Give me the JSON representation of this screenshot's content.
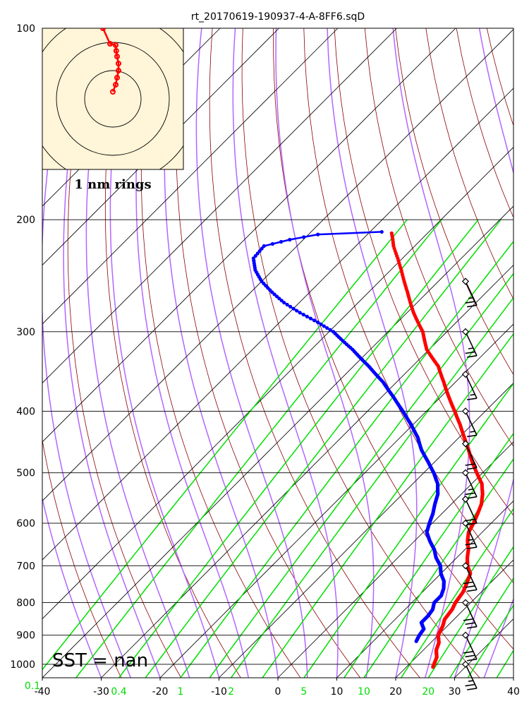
{
  "chart_data": {
    "type": "line",
    "subtype": "skew-t log-p sounding",
    "title": "rt_20170619-190937-4-A-8FF6.sqD",
    "x_ticks": [
      -40,
      -30,
      -20,
      -10,
      0,
      10,
      20,
      30,
      40
    ],
    "xlim": [
      -40,
      40
    ],
    "y_ticks": [
      100,
      200,
      300,
      400,
      500,
      600,
      700,
      800,
      900,
      1000
    ],
    "ylim": [
      1050,
      100
    ],
    "y_scale": "log",
    "mixing_ratio_labels": [
      {
        "label": "0.1",
        "value": 0.1
      },
      {
        "label": "0.4",
        "value": 0.4
      },
      {
        "label": "1",
        "value": 1
      },
      {
        "label": "2",
        "value": 2
      },
      {
        "label": "5",
        "value": 5
      },
      {
        "label": "10",
        "value": 10
      },
      {
        "label": "20",
        "value": 20
      }
    ],
    "annotation": "SST =  nan",
    "colors": {
      "temperature": "#ff0000",
      "dewpoint": "#0000ff",
      "dry_adiabat": "#8b0000",
      "moist_adiabat": "#b266ff",
      "mixing_ratio": "#00e000",
      "isotherm": "#000000",
      "isobar": "#000000",
      "inset_bg": "#fff5d8",
      "mixing_label": "#00dd00"
    },
    "series": [
      {
        "name": "Temperature",
        "points": [
          [
            1010,
            24.5
          ],
          [
            975,
            23.5
          ],
          [
            950,
            22.2
          ],
          [
            925,
            21.4
          ],
          [
            900,
            20.0
          ],
          [
            870,
            19.2
          ],
          [
            850,
            18.4
          ],
          [
            820,
            18.0
          ],
          [
            800,
            17.4
          ],
          [
            770,
            16.9
          ],
          [
            750,
            16.2
          ],
          [
            720,
            15.0
          ],
          [
            700,
            13.2
          ],
          [
            680,
            11.8
          ],
          [
            660,
            10.6
          ],
          [
            640,
            9.0
          ],
          [
            620,
            7.7
          ],
          [
            600,
            7.0
          ],
          [
            580,
            6.1
          ],
          [
            560,
            5.1
          ],
          [
            540,
            3.6
          ],
          [
            520,
            1.7
          ],
          [
            500,
            -1.0
          ],
          [
            480,
            -3.7
          ],
          [
            460,
            -6.3
          ],
          [
            440,
            -9.1
          ],
          [
            420,
            -12.0
          ],
          [
            400,
            -15.2
          ],
          [
            380,
            -18.6
          ],
          [
            360,
            -22.0
          ],
          [
            340,
            -25.6
          ],
          [
            320,
            -30.4
          ],
          [
            300,
            -34.1
          ],
          [
            280,
            -38.9
          ],
          [
            260,
            -43.4
          ],
          [
            240,
            -48.2
          ],
          [
            230,
            -50.8
          ],
          [
            220,
            -53.6
          ],
          [
            215,
            -54.8
          ],
          [
            210,
            -56.1
          ]
        ]
      },
      {
        "name": "Dewpoint",
        "points": [
          [
            920,
            17.3
          ],
          [
            900,
            16.8
          ],
          [
            880,
            16.5
          ],
          [
            860,
            15.0
          ],
          [
            840,
            15.0
          ],
          [
            820,
            14.7
          ],
          [
            800,
            13.8
          ],
          [
            780,
            13.8
          ],
          [
            760,
            13.0
          ],
          [
            740,
            11.8
          ],
          [
            720,
            10.0
          ],
          [
            700,
            8.6
          ],
          [
            680,
            6.5
          ],
          [
            660,
            4.8
          ],
          [
            640,
            2.6
          ],
          [
            620,
            0.6
          ],
          [
            600,
            -0.5
          ],
          [
            580,
            -1.5
          ],
          [
            560,
            -2.8
          ],
          [
            540,
            -4.0
          ],
          [
            520,
            -5.8
          ],
          [
            500,
            -8.3
          ],
          [
            480,
            -11.2
          ],
          [
            460,
            -14.3
          ],
          [
            440,
            -17.0
          ],
          [
            420,
            -20.3
          ],
          [
            400,
            -24.0
          ],
          [
            380,
            -28.0
          ],
          [
            360,
            -32.3
          ],
          [
            340,
            -37.4
          ],
          [
            320,
            -43.0
          ],
          [
            300,
            -49.3
          ],
          [
            290,
            -53.5
          ],
          [
            280,
            -58.2
          ],
          [
            270,
            -62.6
          ],
          [
            260,
            -66.4
          ],
          [
            250,
            -70.0
          ],
          [
            240,
            -73.0
          ],
          [
            230,
            -75.3
          ],
          [
            220,
            -75.6
          ],
          [
            215,
            -72.3
          ],
          [
            211,
            -68.4
          ],
          [
            209,
            -58.0
          ]
        ]
      }
    ],
    "hodograph": {
      "label": "1 nm rings",
      "points": [
        [
          0.0,
          0.25
        ],
        [
          0.1,
          0.5
        ],
        [
          0.15,
          0.75
        ],
        [
          0.2,
          1.0
        ],
        [
          0.2,
          1.25
        ],
        [
          0.15,
          1.5
        ],
        [
          0.12,
          1.7
        ],
        [
          0.1,
          1.9
        ],
        [
          -0.1,
          1.95
        ],
        [
          -0.35,
          2.5
        ]
      ]
    },
    "wind_barbs": [
      {
        "p": 1000,
        "spd": 25
      },
      {
        "p": 900,
        "spd": 30
      },
      {
        "p": 800,
        "spd": 30
      },
      {
        "p": 700,
        "spd": 30
      },
      {
        "p": 600,
        "spd": 25
      },
      {
        "p": 550,
        "spd": 20
      },
      {
        "p": 500,
        "spd": 25
      },
      {
        "p": 450,
        "spd": 20
      },
      {
        "p": 400,
        "spd": 15
      },
      {
        "p": 350,
        "spd": 15
      },
      {
        "p": 300,
        "spd": 25
      },
      {
        "p": 250,
        "spd": 25
      }
    ]
  }
}
